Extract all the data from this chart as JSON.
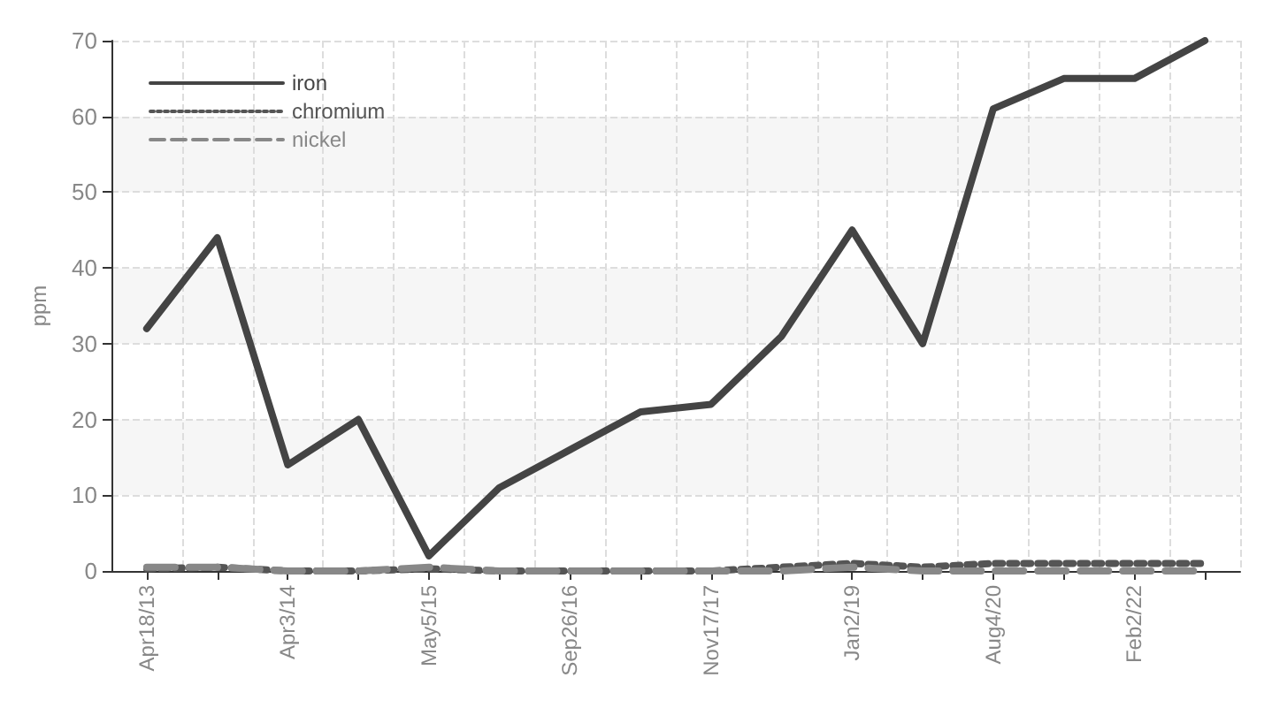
{
  "chart_data": {
    "type": "line",
    "ylabel": "ppm",
    "categories": [
      "Apr18/13",
      null,
      "Apr3/14",
      null,
      "May5/15",
      null,
      "Sep26/16",
      null,
      "Nov17/17",
      null,
      "Jan2/19",
      null,
      "Aug4/20",
      null,
      "Feb2/22",
      null
    ],
    "series": [
      {
        "name": "iron",
        "color": "#444444",
        "line_style": "solid",
        "values": [
          32,
          44,
          14,
          20,
          2,
          11,
          16,
          21,
          22,
          31,
          45,
          30,
          61,
          65,
          65,
          70
        ]
      },
      {
        "name": "chromium",
        "color": "#555555",
        "line_style": "dotted",
        "values": [
          0.3,
          0.5,
          0,
          0,
          0.3,
          0,
          0,
          0,
          0,
          0.5,
          1,
          0.5,
          1,
          1,
          1,
          1
        ]
      },
      {
        "name": "nickel",
        "color": "#888888",
        "line_style": "dashed",
        "values": [
          0.5,
          0.5,
          0,
          0,
          0.5,
          0,
          0,
          0,
          0,
          0,
          0.5,
          0,
          0,
          0,
          0,
          0
        ]
      }
    ],
    "ylim": [
      0,
      70
    ],
    "yticks": [
      0,
      10,
      20,
      30,
      40,
      50,
      60,
      70
    ],
    "grid": true,
    "legend": "top left",
    "marker": "none"
  }
}
